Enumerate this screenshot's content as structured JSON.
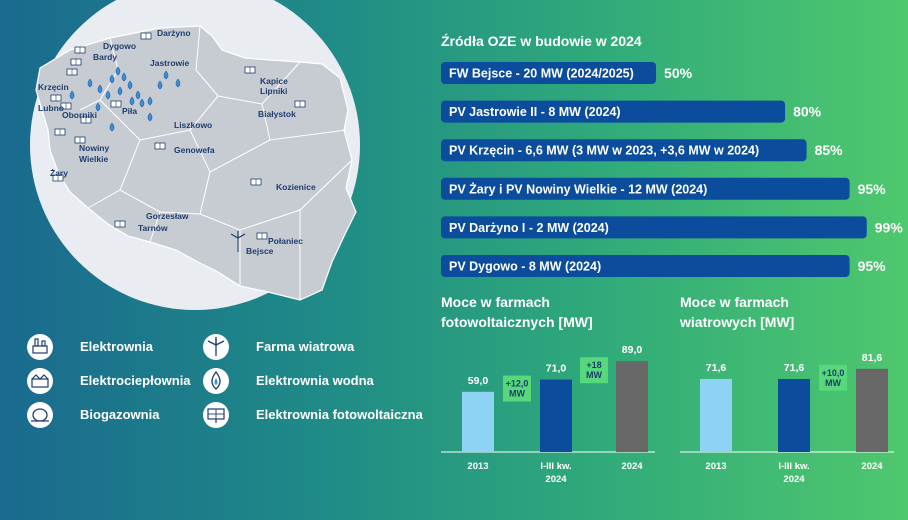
{
  "map": {
    "cities": [
      {
        "id": "darzyno",
        "label": "Darżyno"
      },
      {
        "id": "dygowo",
        "label": "Dygowo"
      },
      {
        "id": "bardy",
        "label": "Bardy"
      },
      {
        "id": "jastrowie",
        "label": "Jastrowie"
      },
      {
        "id": "krzecin",
        "label": "Krzęcin"
      },
      {
        "id": "lubno",
        "label": "Lubno"
      },
      {
        "id": "oborniki",
        "label": "Oborniki"
      },
      {
        "id": "pila",
        "label": "Piła"
      },
      {
        "id": "liszkowo",
        "label": "Liszkowo"
      },
      {
        "id": "kapice",
        "label": "Kapice"
      },
      {
        "id": "lipniki",
        "label": "Lipniki"
      },
      {
        "id": "bialystok",
        "label": "Białystok"
      },
      {
        "id": "nowiny",
        "label": "Nowiny"
      },
      {
        "id": "wielkie",
        "label": "Wielkie"
      },
      {
        "id": "genowefa",
        "label": "Genowefa"
      },
      {
        "id": "zary",
        "label": "Żary"
      },
      {
        "id": "kozienice",
        "label": "Kozienice"
      },
      {
        "id": "gorzeslaw",
        "label": "Gorzesław"
      },
      {
        "id": "tarnow",
        "label": "Tarnów"
      },
      {
        "id": "polaniec",
        "label": "Połaniec"
      },
      {
        "id": "bejsce",
        "label": "Bejsce"
      }
    ]
  },
  "legend": [
    {
      "icon": "power-plant-icon",
      "label": "Elektrownia"
    },
    {
      "icon": "chp-plant-icon",
      "label": "Elektrociepłownia"
    },
    {
      "icon": "biogas-plant-icon",
      "label": "Biogazownia"
    },
    {
      "icon": "wind-turbine-icon",
      "label": "Farma wiatrowa"
    },
    {
      "icon": "water-drop-icon",
      "label": "Elektrownia wodna"
    },
    {
      "icon": "solar-panel-icon",
      "label": "Elektrownia fotowoltaiczna"
    }
  ],
  "progress": {
    "title": "Źródła OZE w budowie w 2024",
    "items": [
      {
        "label": "FW Bejsce - 20 MW (2024/2025)",
        "pct": "50%",
        "value": 0.5
      },
      {
        "label": "PV Jastrowie II - 8 MW (2024)",
        "pct": "80%",
        "value": 0.8
      },
      {
        "label": "PV Krzęcin - 6,6 MW (3 MW w 2023, +3,6 MW w 2024)",
        "pct": "85%",
        "value": 0.85
      },
      {
        "label": "PV Żary i PV Nowiny Wielkie - 12 MW (2024)",
        "pct": "95%",
        "value": 0.95
      },
      {
        "label": "PV Darżyno I - 2 MW (2024)",
        "pct": "99%",
        "value": 0.99
      },
      {
        "label": "PV Dygowo - 8 MW (2024)",
        "pct": "95%",
        "value": 0.95
      }
    ]
  },
  "colors": {
    "light_blue": "#8fd3f4",
    "dark_blue": "#0b4d9c",
    "gray": "#686868",
    "delta_green": "#57d87a",
    "progress_bar": "#0b4d9c"
  },
  "chart_data": [
    {
      "type": "bar",
      "title_lines": [
        "Moce w farmach",
        "fotowoltaicznych [MW]"
      ],
      "categories": [
        "2013",
        "I-III kw.\n2024",
        "2024"
      ],
      "category_lines": [
        [
          "2013"
        ],
        [
          "I-III kw.",
          "2024"
        ],
        [
          "2024"
        ]
      ],
      "values": [
        59.0,
        71.0,
        89.0
      ],
      "value_labels": [
        "59,0",
        "71,0",
        "89,0"
      ],
      "deltas": [
        {
          "after_index": 0,
          "lines": [
            "+12,0",
            "MW"
          ]
        },
        {
          "after_index": 1,
          "lines": [
            "+18",
            "MW"
          ]
        }
      ],
      "ylim": [
        0,
        100
      ]
    },
    {
      "type": "bar",
      "title_lines": [
        "Moce w farmach",
        "wiatrowych [MW]"
      ],
      "categories": [
        "2013",
        "I-III kw.\n2024",
        "2024"
      ],
      "category_lines": [
        [
          "2013"
        ],
        [
          "I-III kw.",
          "2024"
        ],
        [
          "2024"
        ]
      ],
      "values": [
        71.6,
        71.6,
        81.6
      ],
      "value_labels": [
        "71,6",
        "71,6",
        "81,6"
      ],
      "deltas": [
        {
          "after_index": 1,
          "lines": [
            "+10,0",
            "MW"
          ]
        }
      ],
      "ylim": [
        0,
        100
      ]
    }
  ]
}
